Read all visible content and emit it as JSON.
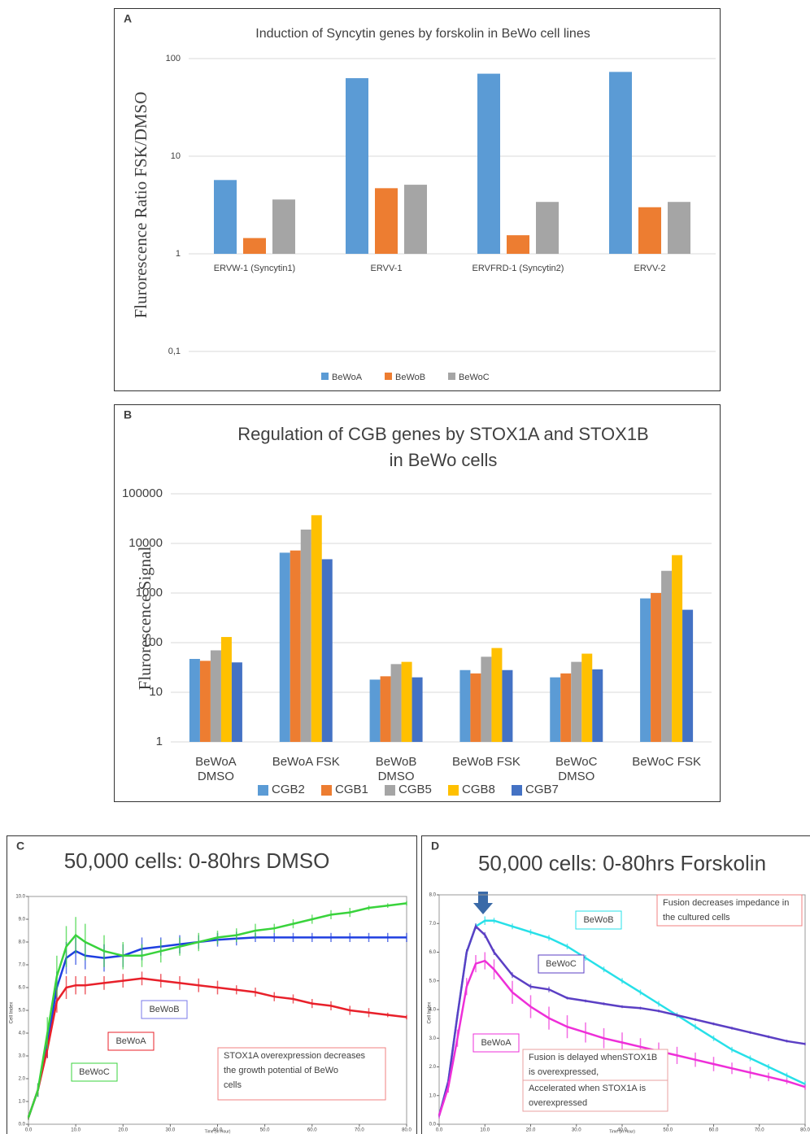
{
  "chart_data": [
    {
      "type": "bar",
      "panel": "A",
      "title": "Induction of Syncytin genes by forskolin in BeWo cell lines",
      "y_label": "Flurorescence Ratio FSK/DMSO",
      "log_y": true,
      "grid": true,
      "legend": "bottom",
      "categories": [
        "ERVW-1 (Syncytin1)",
        "ERVV-1",
        "ERVFRD-1 (Syncytin2)",
        "ERVV-2"
      ],
      "series": [
        {
          "name": "BeWoA",
          "color": "#5b9bd5",
          "values": [
            5.7,
            63,
            70,
            73
          ]
        },
        {
          "name": "BeWoB",
          "color": "#ed7d31",
          "values": [
            1.45,
            4.7,
            1.55,
            3.0
          ]
        },
        {
          "name": "BeWoC",
          "color": "#a5a5a5",
          "values": [
            3.6,
            5.1,
            3.4,
            3.4
          ]
        }
      ],
      "ylim": [
        0.1,
        100
      ],
      "yticks": [
        {
          "value": 0.1,
          "label": "0,1"
        },
        1,
        10,
        100
      ]
    },
    {
      "type": "bar",
      "panel": "B",
      "title": [
        "Regulation of CGB genes by STOX1A and STOX1B",
        "in BeWo cells"
      ],
      "y_label": "Flurorescence Signal",
      "log_y": true,
      "grid": true,
      "legend": "bottom",
      "categories": [
        [
          "BeWoA",
          "DMSO"
        ],
        [
          "BeWoA FSK"
        ],
        [
          "BeWoB",
          "DMSO"
        ],
        [
          "BeWoB FSK"
        ],
        [
          "BeWoC",
          "DMSO"
        ],
        [
          "BeWoC FSK"
        ]
      ],
      "series": [
        {
          "name": "CGB2",
          "color": "#5b9bd5",
          "values": [
            47,
            6500,
            18,
            28,
            20,
            780
          ]
        },
        {
          "name": "CGB1",
          "color": "#ed7d31",
          "values": [
            43,
            7200,
            21,
            24,
            24,
            1000
          ]
        },
        {
          "name": "CGB5",
          "color": "#a5a5a5",
          "values": [
            70,
            19000,
            37,
            52,
            41,
            2800
          ]
        },
        {
          "name": "CGB8",
          "color": "#ffc000",
          "values": [
            130,
            37000,
            41,
            78,
            60,
            5800
          ]
        },
        {
          "name": "CGB7",
          "color": "#4472c4",
          "values": [
            40,
            4800,
            20,
            28,
            29,
            460
          ]
        }
      ],
      "ylim": [
        1,
        100000
      ],
      "yticks": [
        1,
        10,
        100,
        1000,
        10000,
        100000
      ]
    },
    {
      "type": "line",
      "panel": "C",
      "title": "50,000 cells: 0-80hrs DMSO",
      "x_label": "Time (in Hour)",
      "y_label": "Cell Index",
      "x": [
        0,
        2,
        4,
        6,
        8,
        10,
        12,
        16,
        20,
        24,
        28,
        32,
        36,
        40,
        44,
        48,
        52,
        56,
        60,
        64,
        68,
        72,
        76,
        80
      ],
      "series": [
        {
          "name": "BeWoB",
          "color": "#1f3fe0",
          "values": [
            0.3,
            1.5,
            3.5,
            6.0,
            7.3,
            7.6,
            7.4,
            7.3,
            7.4,
            7.7,
            7.8,
            7.9,
            8.0,
            8.1,
            8.15,
            8.2,
            8.2,
            8.2,
            8.2,
            8.2,
            8.2,
            8.2,
            8.2,
            8.2
          ],
          "errors": [
            0.1,
            0.3,
            0.6,
            0.7,
            0.7,
            0.6,
            0.6,
            0.6,
            0.5,
            0.5,
            0.4,
            0.4,
            0.3,
            0.3,
            0.3,
            0.2,
            0.2,
            0.2,
            0.2,
            0.2,
            0.2,
            0.2,
            0.2,
            0.2
          ]
        },
        {
          "name": "BeWoA",
          "color": "#e8202a",
          "values": [
            0.3,
            1.5,
            3.3,
            5.4,
            6.0,
            6.1,
            6.1,
            6.2,
            6.3,
            6.4,
            6.3,
            6.2,
            6.1,
            6.0,
            5.9,
            5.8,
            5.6,
            5.5,
            5.3,
            5.2,
            5.0,
            4.9,
            4.8,
            4.7
          ],
          "errors": [
            0.1,
            0.2,
            0.4,
            0.5,
            0.5,
            0.4,
            0.4,
            0.3,
            0.3,
            0.3,
            0.3,
            0.3,
            0.3,
            0.3,
            0.2,
            0.2,
            0.2,
            0.2,
            0.2,
            0.2,
            0.2,
            0.2,
            0.1,
            0.1
          ]
        },
        {
          "name": "BeWoC",
          "color": "#39d33c",
          "values": [
            0.3,
            1.5,
            4.0,
            6.5,
            7.8,
            8.3,
            8.0,
            7.6,
            7.4,
            7.4,
            7.6,
            7.8,
            8.0,
            8.2,
            8.3,
            8.5,
            8.6,
            8.8,
            9.0,
            9.2,
            9.3,
            9.5,
            9.6,
            9.7
          ],
          "errors": [
            0.1,
            0.3,
            0.7,
            0.9,
            0.9,
            0.8,
            0.8,
            0.7,
            0.6,
            0.5,
            0.5,
            0.4,
            0.4,
            0.3,
            0.3,
            0.3,
            0.2,
            0.2,
            0.2,
            0.2,
            0.2,
            0.1,
            0.1,
            0.1
          ]
        }
      ],
      "xlim": [
        0,
        80
      ],
      "ylim": [
        0,
        10
      ],
      "xticks": [
        {
          "value": 0,
          "label": "0.0"
        },
        {
          "value": 10,
          "label": "10.0"
        },
        {
          "value": 20,
          "label": "20.0"
        },
        {
          "value": 30,
          "label": "30.0"
        },
        {
          "value": 40,
          "label": "40.0"
        },
        {
          "value": 50,
          "label": "50.0"
        },
        {
          "value": 60,
          "label": "60.0"
        },
        {
          "value": 70,
          "label": "70.0"
        },
        {
          "value": 80,
          "label": "80.0"
        }
      ],
      "yticks": [
        {
          "value": 0,
          "label": "0.0"
        },
        {
          "value": 1,
          "label": "1.0"
        },
        {
          "value": 2,
          "label": "2.0"
        },
        {
          "value": 3,
          "label": "3.0"
        },
        {
          "value": 4,
          "label": "4.0"
        },
        {
          "value": 5,
          "label": "5.0"
        },
        {
          "value": 6,
          "label": "6.0"
        },
        {
          "value": 7,
          "label": "7.0"
        },
        {
          "value": 8,
          "label": "8.0"
        },
        {
          "value": 9,
          "label": "9.0"
        },
        {
          "value": 10,
          "label": "10.0"
        }
      ],
      "annotations": [
        {
          "text": [
            "BeWoB"
          ],
          "color": "#404040"
        },
        {
          "text": [
            "BeWoA"
          ],
          "color": "#404040"
        },
        {
          "text": [
            "BeWoC"
          ],
          "color": "#404040"
        },
        {
          "text": [
            "STOX1A overexpression decreases",
            "the growth potential of BeWo",
            "cells"
          ],
          "color": "#e8202a"
        }
      ]
    },
    {
      "type": "line",
      "panel": "D",
      "title": "50,000 cells: 0-80hrs Forskolin",
      "x_label": "Time (in Hour)",
      "y_label": "Cell Index",
      "x": [
        0,
        2,
        4,
        6,
        8,
        10,
        12,
        16,
        20,
        24,
        28,
        32,
        36,
        40,
        44,
        48,
        52,
        56,
        60,
        64,
        68,
        72,
        76,
        80
      ],
      "series": [
        {
          "name": "BeWoB",
          "color": "#27e0e8",
          "values": [
            0.3,
            1.5,
            3.8,
            6.0,
            6.9,
            7.1,
            7.1,
            6.9,
            6.7,
            6.5,
            6.2,
            5.8,
            5.4,
            5.0,
            4.6,
            4.2,
            3.8,
            3.4,
            3.0,
            2.6,
            2.3,
            2.0,
            1.7,
            1.4
          ],
          "errors": [
            0.05,
            0.1,
            0.1,
            0.1,
            0.1,
            0.15,
            0.1,
            0.1,
            0.1,
            0.1,
            0.1,
            0.1,
            0.1,
            0.1,
            0.1,
            0.1,
            0.1,
            0.1,
            0.1,
            0.1,
            0.1,
            0.1,
            0.1,
            0.1
          ]
        },
        {
          "name": "BeWoC",
          "color": "#5b3fc4",
          "values": [
            0.3,
            1.5,
            3.8,
            6.0,
            6.9,
            6.6,
            6.0,
            5.2,
            4.8,
            4.7,
            4.4,
            4.3,
            4.2,
            4.1,
            4.05,
            3.95,
            3.8,
            3.65,
            3.5,
            3.35,
            3.2,
            3.05,
            2.9,
            2.8
          ],
          "errors": [
            0.05,
            0.1,
            0.1,
            0.1,
            0.1,
            0.1,
            0.1,
            0.1,
            0.1,
            0.1,
            0.05,
            0.05,
            0.05,
            0.05,
            0.05,
            0.05,
            0.05,
            0.05,
            0.05,
            0.05,
            0.05,
            0.05,
            0.05,
            0.05
          ]
        },
        {
          "name": "BeWoA",
          "color": "#ee2fd8",
          "values": [
            0.3,
            1.3,
            3.0,
            4.8,
            5.6,
            5.7,
            5.4,
            4.6,
            4.1,
            3.7,
            3.4,
            3.2,
            3.0,
            2.85,
            2.7,
            2.55,
            2.4,
            2.25,
            2.1,
            1.95,
            1.8,
            1.65,
            1.5,
            1.3
          ],
          "errors": [
            0.1,
            0.2,
            0.3,
            0.3,
            0.3,
            0.3,
            0.35,
            0.4,
            0.4,
            0.4,
            0.4,
            0.35,
            0.35,
            0.35,
            0.3,
            0.3,
            0.3,
            0.25,
            0.25,
            0.2,
            0.2,
            0.15,
            0.1,
            0.1
          ]
        }
      ],
      "xlim": [
        0,
        80
      ],
      "ylim": [
        0,
        8
      ],
      "xticks": [
        {
          "value": 0,
          "label": "0.0"
        },
        {
          "value": 10,
          "label": "10.0"
        },
        {
          "value": 20,
          "label": "20.0"
        },
        {
          "value": 30,
          "label": "30.0"
        },
        {
          "value": 40,
          "label": "40.0"
        },
        {
          "value": 50,
          "label": "50.0"
        },
        {
          "value": 60,
          "label": "60.0"
        },
        {
          "value": 70,
          "label": "70.0"
        },
        {
          "value": 80,
          "label": "80.0"
        }
      ],
      "yticks": [
        {
          "value": 0,
          "label": "0.0"
        },
        {
          "value": 1,
          "label": "1.0"
        },
        {
          "value": 2,
          "label": "2.0"
        },
        {
          "value": 3,
          "label": "3.0"
        },
        {
          "value": 4,
          "label": "4.0"
        },
        {
          "value": 5,
          "label": "5.0"
        },
        {
          "value": 6,
          "label": "6.0"
        },
        {
          "value": 7,
          "label": "7.0"
        },
        {
          "value": 8,
          "label": "8.0"
        }
      ],
      "annotations": [
        {
          "text": [
            "Fusion decreases impedance in",
            "the cultured cells"
          ],
          "color": "#404040"
        },
        {
          "text": [
            "BeWoB"
          ],
          "color": "#404040"
        },
        {
          "text": [
            "BeWoC"
          ],
          "color": "#404040"
        },
        {
          "text": [
            "BeWoA"
          ],
          "color": "#404040"
        },
        {
          "text": [
            "Fusion is delayed whenSTOX1B",
            "is overexpressed,"
          ],
          "color": "#27d8e0"
        },
        {
          "text": [
            "Accelerated when STOX1A is",
            "overexpressed"
          ],
          "color": "#ee2fd8"
        }
      ]
    }
  ]
}
